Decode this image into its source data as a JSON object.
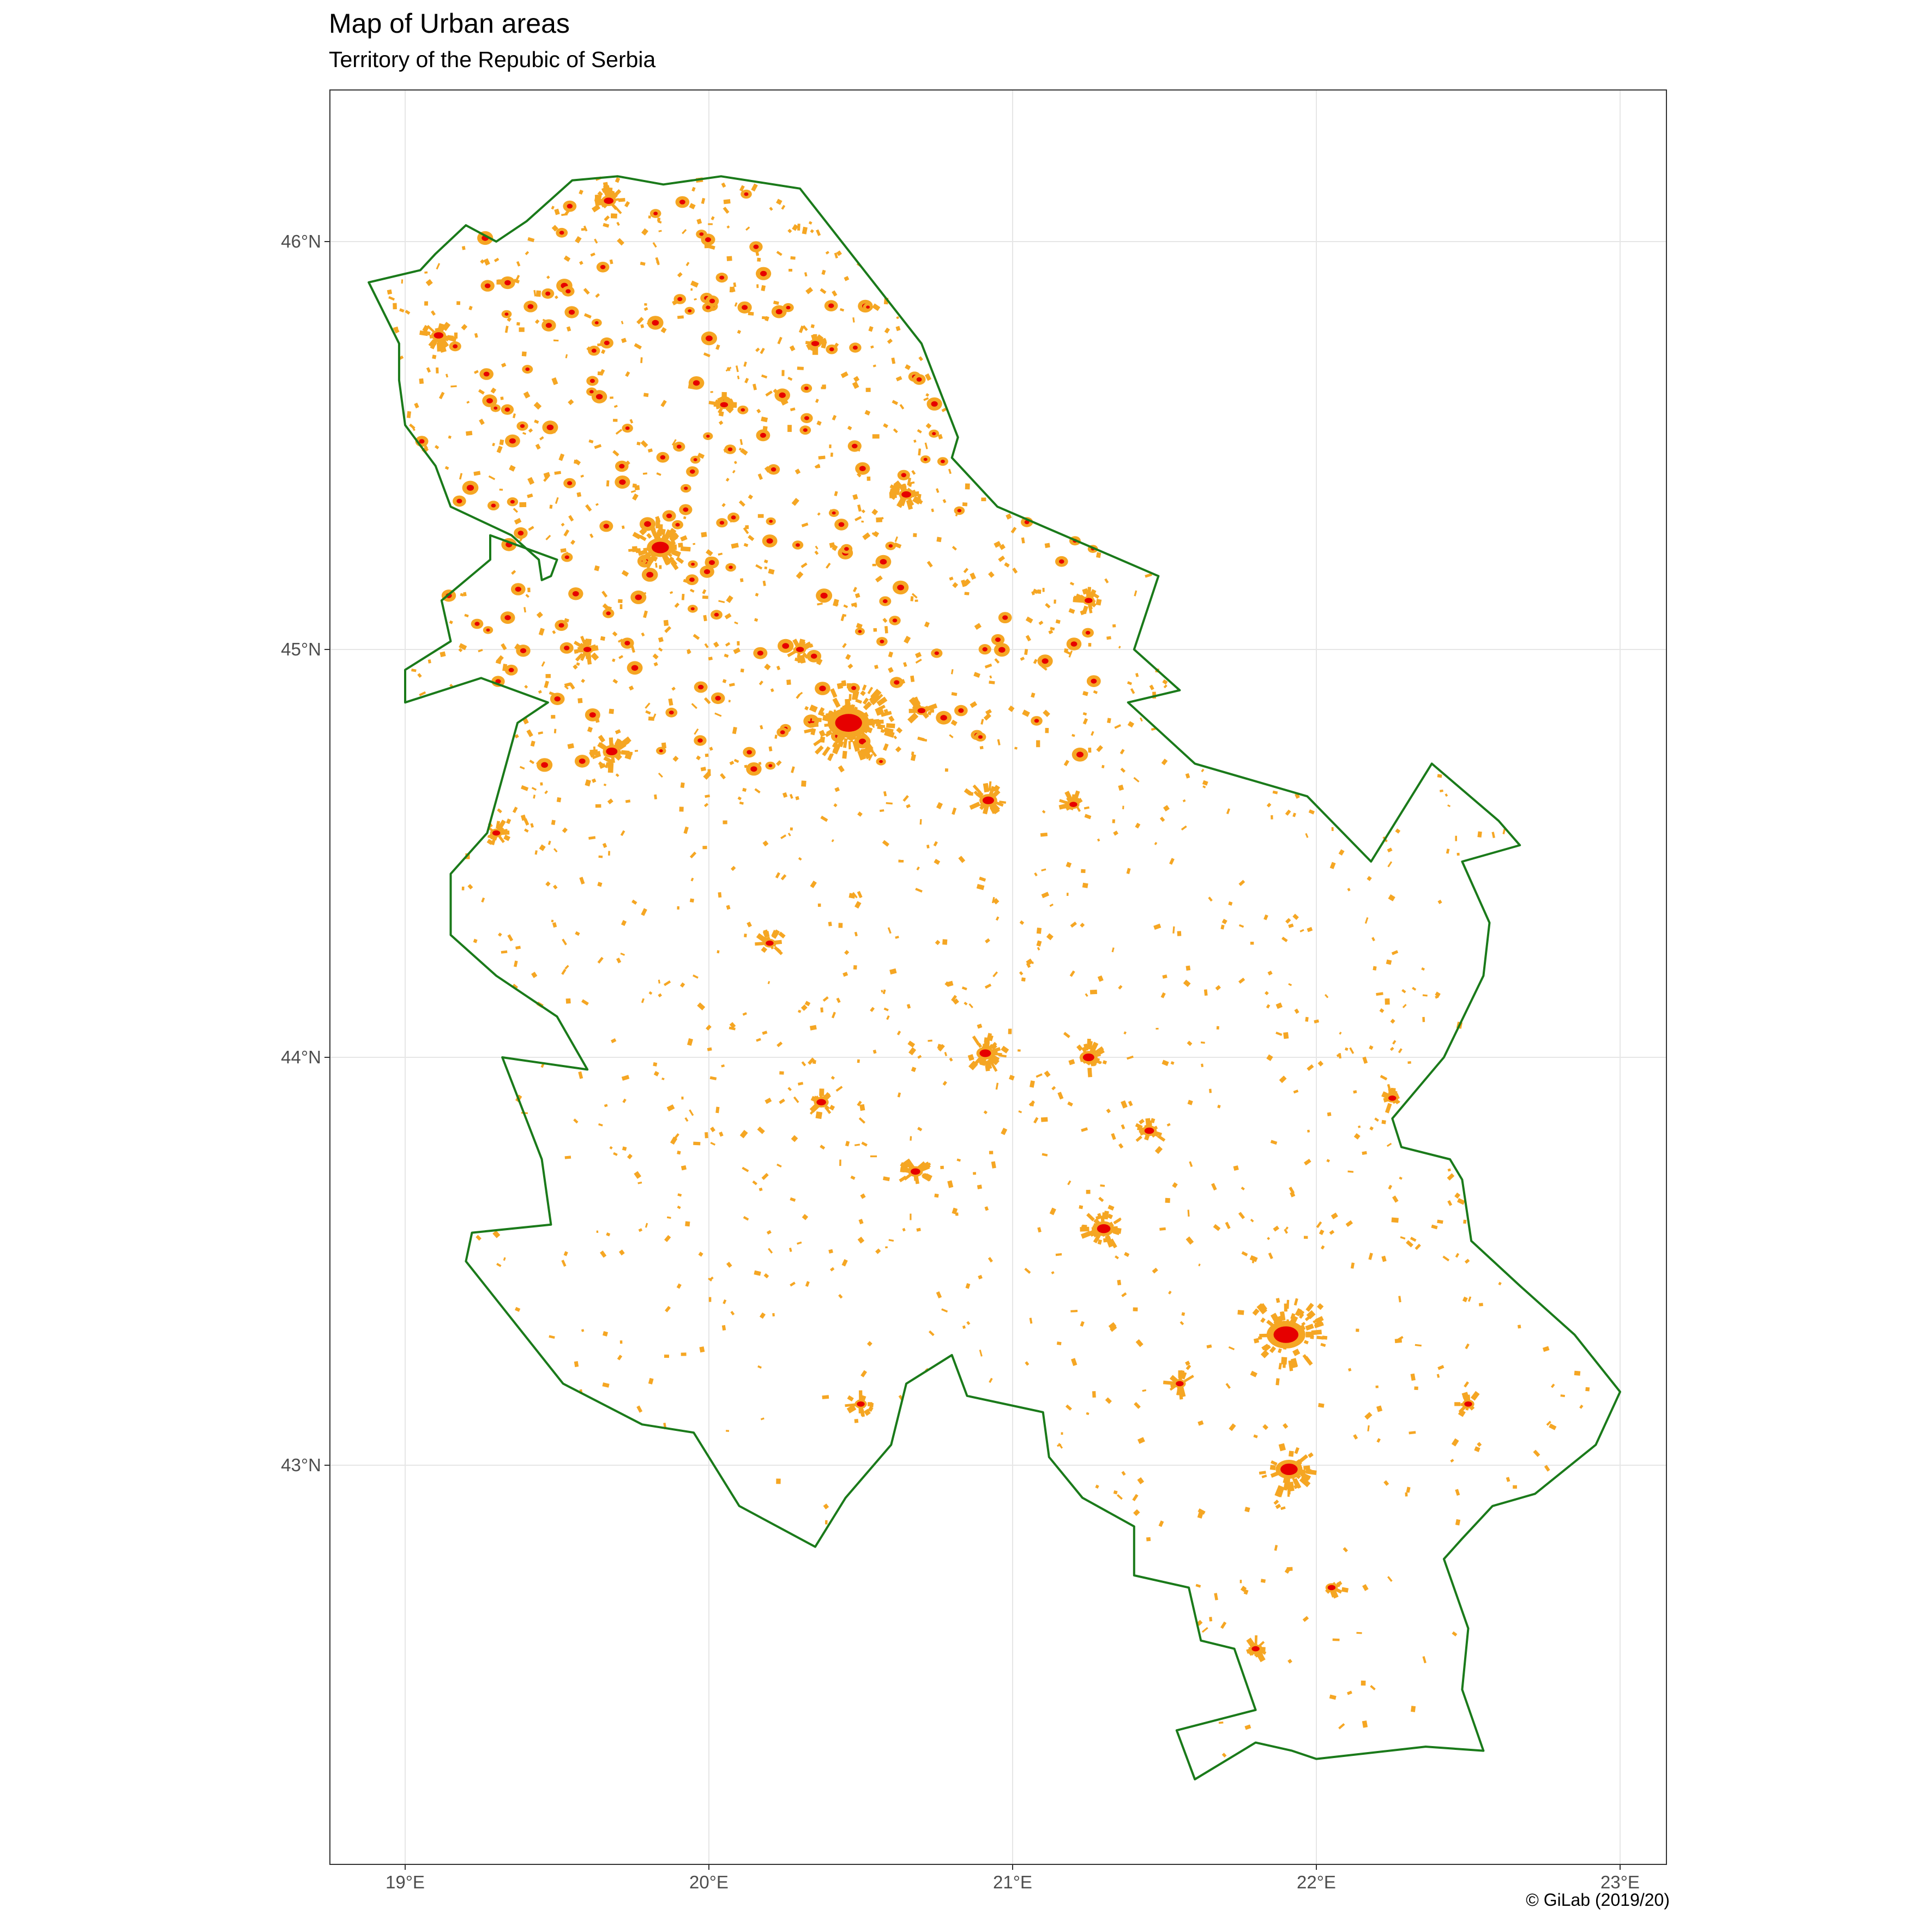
{
  "title": "Map of Urban areas",
  "subtitle": "Territory of the Repubic of Serbia",
  "caption": "© GiLab (2019/20)",
  "map": {
    "region": "Republic of Serbia",
    "lon_range": [
      18.75,
      23.15
    ],
    "lat_range": [
      41.98,
      46.4
    ],
    "lon_ticks": [
      {
        "value": 19,
        "label": "19°E"
      },
      {
        "value": 20,
        "label": "20°E"
      },
      {
        "value": 21,
        "label": "21°E"
      },
      {
        "value": 22,
        "label": "22°E"
      },
      {
        "value": 23,
        "label": "23°E"
      }
    ],
    "lat_ticks": [
      {
        "value": 43,
        "label": "43°N"
      },
      {
        "value": 44,
        "label": "44°N"
      },
      {
        "value": 45,
        "label": "45°N"
      },
      {
        "value": 46,
        "label": "46°N"
      }
    ],
    "grid": true,
    "colors": {
      "border": "#1a7a1a",
      "urban_low": "#f5a623",
      "urban_high": "#e60000",
      "grid": "#e6e6e6",
      "panel_border": "#333333"
    },
    "border_coords": [
      [
        20.04,
        46.16
      ],
      [
        20.3,
        46.13
      ],
      [
        20.7,
        45.75
      ],
      [
        20.82,
        45.52
      ],
      [
        20.8,
        45.47
      ],
      [
        20.95,
        45.35
      ],
      [
        21.48,
        45.18
      ],
      [
        21.4,
        45.0
      ],
      [
        21.55,
        44.9
      ],
      [
        21.38,
        44.87
      ],
      [
        21.6,
        44.72
      ],
      [
        21.97,
        44.64
      ],
      [
        22.18,
        44.48
      ],
      [
        22.38,
        44.72
      ],
      [
        22.6,
        44.58
      ],
      [
        22.67,
        44.52
      ],
      [
        22.48,
        44.48
      ],
      [
        22.57,
        44.33
      ],
      [
        22.55,
        44.2
      ],
      [
        22.42,
        44.0
      ],
      [
        22.25,
        43.85
      ],
      [
        22.28,
        43.78
      ],
      [
        22.44,
        43.75
      ],
      [
        22.48,
        43.7
      ],
      [
        22.51,
        43.55
      ],
      [
        22.67,
        43.44
      ],
      [
        22.85,
        43.32
      ],
      [
        23.0,
        43.18
      ],
      [
        22.92,
        43.05
      ],
      [
        22.72,
        42.93
      ],
      [
        22.58,
        42.9
      ],
      [
        22.48,
        42.82
      ],
      [
        22.42,
        42.77
      ],
      [
        22.5,
        42.6
      ],
      [
        22.48,
        42.45
      ],
      [
        22.55,
        42.3
      ],
      [
        22.36,
        42.31
      ],
      [
        22.0,
        42.28
      ],
      [
        21.92,
        42.3
      ],
      [
        21.8,
        42.32
      ],
      [
        21.6,
        42.23
      ],
      [
        21.54,
        42.35
      ],
      [
        21.8,
        42.4
      ],
      [
        21.73,
        42.55
      ],
      [
        21.62,
        42.57
      ],
      [
        21.58,
        42.7
      ],
      [
        21.4,
        42.73
      ],
      [
        21.4,
        42.85
      ],
      [
        21.23,
        42.92
      ],
      [
        21.12,
        43.02
      ],
      [
        21.1,
        43.13
      ],
      [
        20.85,
        43.17
      ],
      [
        20.8,
        43.27
      ],
      [
        20.65,
        43.2
      ],
      [
        20.6,
        43.05
      ],
      [
        20.45,
        42.92
      ],
      [
        20.35,
        42.8
      ],
      [
        20.1,
        42.9
      ],
      [
        19.95,
        43.08
      ],
      [
        19.78,
        43.1
      ],
      [
        19.52,
        43.2
      ],
      [
        19.2,
        43.5
      ],
      [
        19.22,
        43.57
      ],
      [
        19.48,
        43.59
      ],
      [
        19.45,
        43.75
      ],
      [
        19.32,
        44.0
      ],
      [
        19.6,
        43.97
      ],
      [
        19.5,
        44.1
      ],
      [
        19.3,
        44.2
      ],
      [
        19.15,
        44.3
      ],
      [
        19.15,
        44.45
      ],
      [
        19.27,
        44.55
      ],
      [
        19.37,
        44.82
      ],
      [
        19.47,
        44.87
      ],
      [
        19.25,
        44.93
      ],
      [
        19.0,
        44.87
      ],
      [
        19.0,
        44.95
      ],
      [
        19.15,
        45.02
      ],
      [
        19.12,
        45.12
      ],
      [
        19.28,
        45.22
      ],
      [
        19.28,
        45.28
      ],
      [
        19.5,
        45.22
      ],
      [
        19.48,
        45.18
      ],
      [
        19.45,
        45.17
      ],
      [
        19.44,
        45.22
      ],
      [
        19.35,
        45.28
      ],
      [
        19.15,
        45.35
      ],
      [
        19.1,
        45.45
      ],
      [
        19.0,
        45.55
      ],
      [
        18.98,
        45.66
      ],
      [
        18.98,
        45.75
      ],
      [
        18.88,
        45.9
      ],
      [
        19.05,
        45.93
      ],
      [
        19.1,
        45.97
      ],
      [
        19.2,
        46.04
      ],
      [
        19.3,
        46.0
      ],
      [
        19.4,
        46.05
      ],
      [
        19.55,
        46.15
      ],
      [
        19.7,
        46.16
      ],
      [
        19.85,
        46.14
      ],
      [
        20.04,
        46.16
      ]
    ],
    "urban_clusters": [
      {
        "lon": 20.46,
        "lat": 44.82,
        "r": 0.14,
        "n": 110
      },
      {
        "lon": 19.84,
        "lat": 45.25,
        "r": 0.09,
        "n": 55
      },
      {
        "lon": 19.67,
        "lat": 46.1,
        "r": 0.05,
        "n": 30
      },
      {
        "lon": 21.9,
        "lat": 43.32,
        "r": 0.13,
        "n": 80
      },
      {
        "lon": 20.91,
        "lat": 44.01,
        "r": 0.06,
        "n": 30
      },
      {
        "lon": 21.91,
        "lat": 42.99,
        "r": 0.09,
        "n": 45
      },
      {
        "lon": 20.65,
        "lat": 45.38,
        "r": 0.05,
        "n": 25
      },
      {
        "lon": 19.11,
        "lat": 45.77,
        "r": 0.05,
        "n": 25
      },
      {
        "lon": 20.92,
        "lat": 44.63,
        "r": 0.06,
        "n": 30
      },
      {
        "lon": 21.3,
        "lat": 43.58,
        "r": 0.07,
        "n": 35
      },
      {
        "lon": 20.68,
        "lat": 43.72,
        "r": 0.05,
        "n": 25
      },
      {
        "lon": 19.68,
        "lat": 44.75,
        "r": 0.06,
        "n": 30
      },
      {
        "lon": 20.37,
        "lat": 43.89,
        "r": 0.05,
        "n": 20
      },
      {
        "lon": 21.2,
        "lat": 44.62,
        "r": 0.04,
        "n": 18
      },
      {
        "lon": 20.2,
        "lat": 44.28,
        "r": 0.04,
        "n": 15
      },
      {
        "lon": 19.6,
        "lat": 45.0,
        "r": 0.04,
        "n": 18
      },
      {
        "lon": 22.25,
        "lat": 43.9,
        "r": 0.04,
        "n": 15
      },
      {
        "lon": 22.5,
        "lat": 43.15,
        "r": 0.04,
        "n": 15
      },
      {
        "lon": 21.8,
        "lat": 42.55,
        "r": 0.04,
        "n": 15
      },
      {
        "lon": 20.5,
        "lat": 43.15,
        "r": 0.04,
        "n": 15
      },
      {
        "lon": 19.3,
        "lat": 44.55,
        "r": 0.04,
        "n": 15
      },
      {
        "lon": 21.25,
        "lat": 44.0,
        "r": 0.06,
        "n": 25
      },
      {
        "lon": 21.55,
        "lat": 43.2,
        "r": 0.04,
        "n": 15
      },
      {
        "lon": 22.05,
        "lat": 42.7,
        "r": 0.03,
        "n": 10
      },
      {
        "lon": 20.7,
        "lat": 44.85,
        "r": 0.04,
        "n": 15
      },
      {
        "lon": 20.05,
        "lat": 45.6,
        "r": 0.04,
        "n": 15
      },
      {
        "lon": 21.25,
        "lat": 45.12,
        "r": 0.04,
        "n": 15
      },
      {
        "lon": 20.35,
        "lat": 45.75,
        "r": 0.03,
        "n": 12
      },
      {
        "lon": 21.45,
        "lat": 43.82,
        "r": 0.05,
        "n": 20
      },
      {
        "lon": 20.3,
        "lat": 45.0,
        "r": 0.04,
        "n": 15
      }
    ]
  }
}
